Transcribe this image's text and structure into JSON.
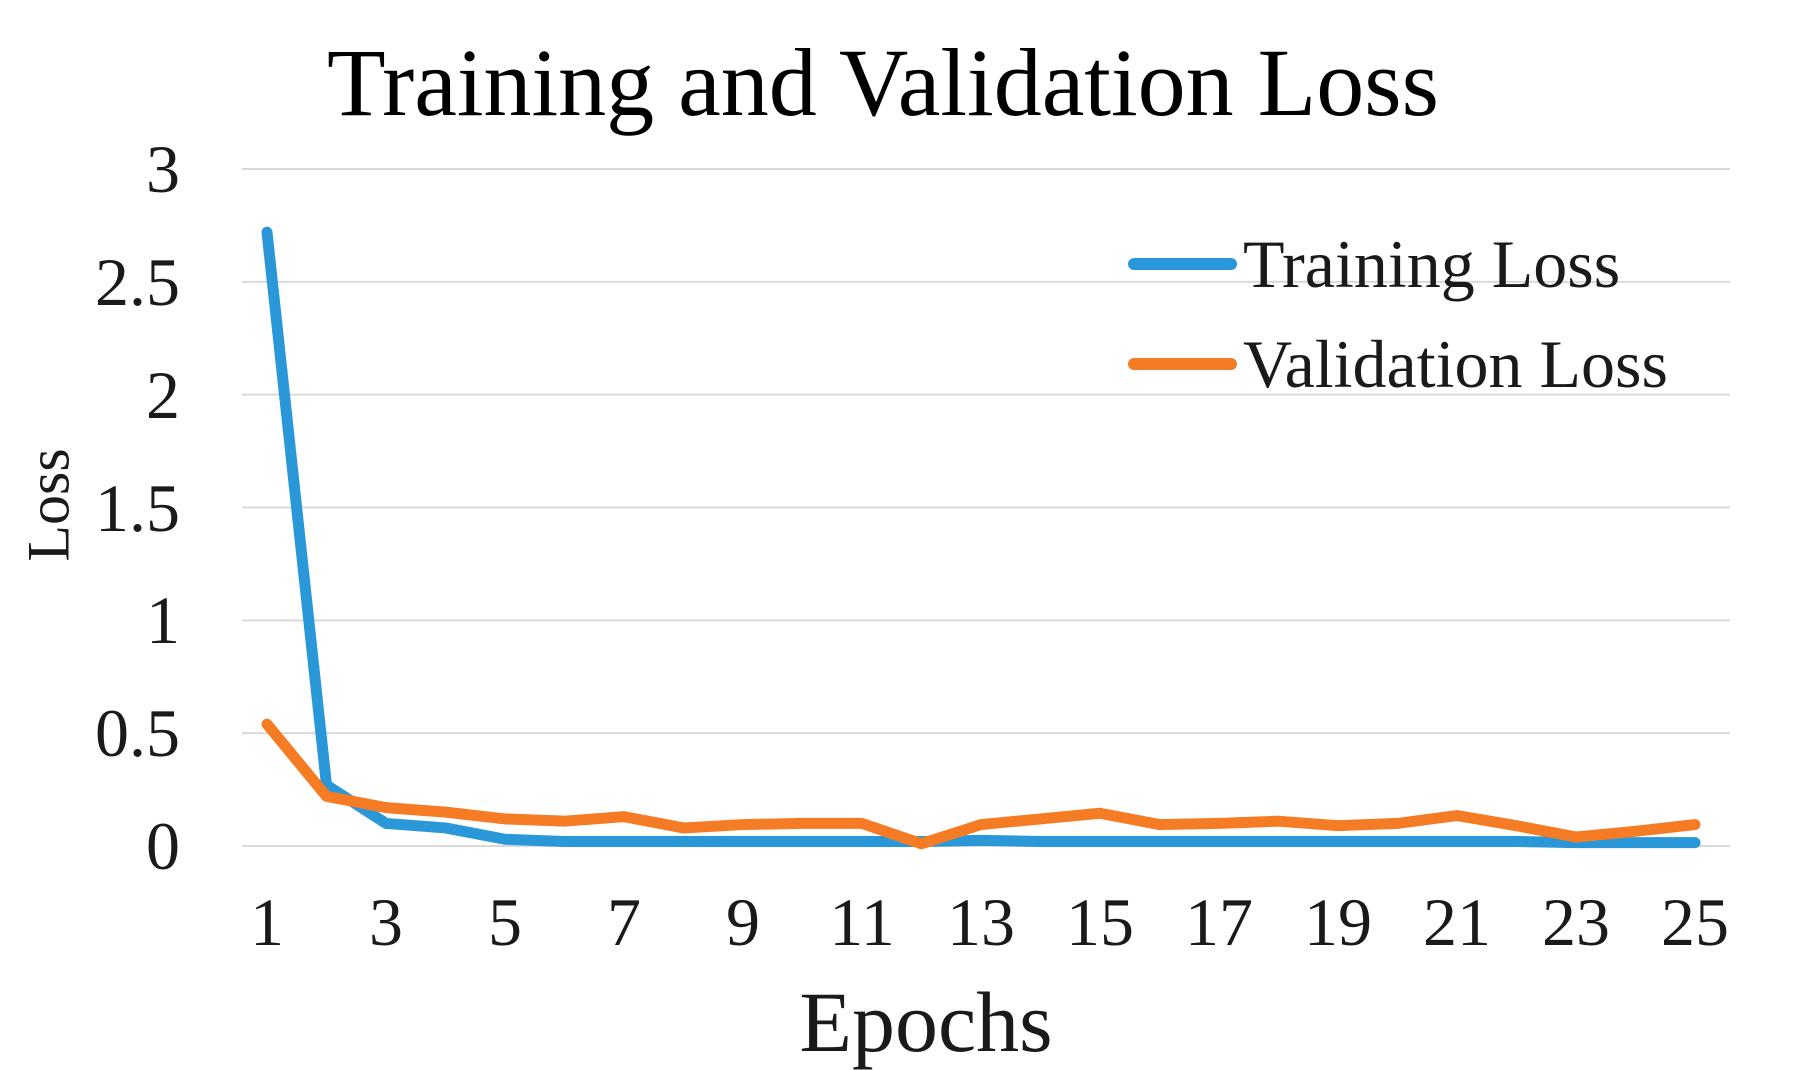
{
  "chart_data": {
    "type": "line",
    "title": "Training and Validation Loss",
    "xlabel": "Epochs",
    "ylabel": "Loss",
    "x": [
      1,
      2,
      3,
      4,
      5,
      6,
      7,
      8,
      9,
      10,
      11,
      12,
      13,
      14,
      15,
      16,
      17,
      18,
      19,
      20,
      21,
      22,
      23,
      24,
      25
    ],
    "series": [
      {
        "name": "Training Loss",
        "color": "#2A97D8",
        "values": [
          2.72,
          0.27,
          0.1,
          0.08,
          0.03,
          0.02,
          0.02,
          0.02,
          0.02,
          0.02,
          0.02,
          0.02,
          0.025,
          0.02,
          0.02,
          0.02,
          0.02,
          0.02,
          0.02,
          0.02,
          0.02,
          0.02,
          0.015,
          0.015,
          0.015
        ]
      },
      {
        "name": "Validation Loss",
        "color": "#F57C24",
        "values": [
          0.54,
          0.22,
          0.17,
          0.15,
          0.12,
          0.11,
          0.13,
          0.08,
          0.095,
          0.1,
          0.1,
          0.01,
          0.095,
          0.12,
          0.145,
          0.095,
          0.1,
          0.11,
          0.09,
          0.1,
          0.135,
          0.09,
          0.04,
          0.065,
          0.095
        ]
      }
    ],
    "ylim": [
      0,
      3
    ],
    "yticks": [
      0,
      0.5,
      1,
      1.5,
      2,
      2.5,
      3
    ],
    "ytick_labels": [
      "0",
      "0.5",
      "1",
      "1.5",
      "2",
      "2.5",
      "3"
    ],
    "xticks": [
      1,
      3,
      5,
      7,
      9,
      11,
      13,
      15,
      17,
      19,
      21,
      23,
      25
    ],
    "grid": "horizontal",
    "gridline_color": "#D9D9D9",
    "line_width": 11,
    "legend_position": "upper-right",
    "background": "#FFFFFF"
  }
}
